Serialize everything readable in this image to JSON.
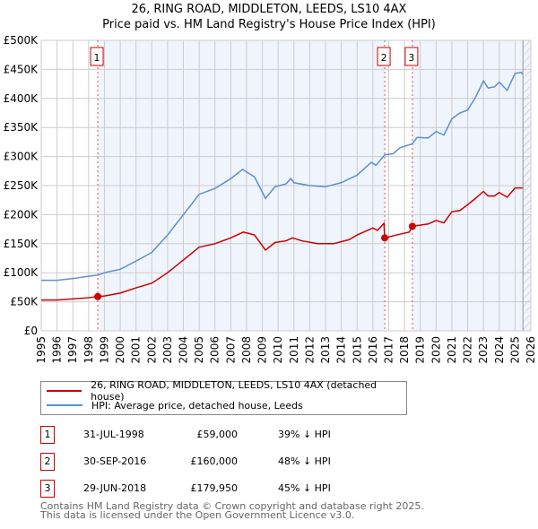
{
  "chart_data": {
    "type": "line",
    "title": "26, RING ROAD, MIDDLETON, LEEDS, LS10 4AX",
    "subtitle": "Price paid vs. HM Land Registry's House Price Index (HPI)",
    "xlim": [
      1995,
      2026
    ],
    "ylim": [
      0,
      500000
    ],
    "y_ticks": [
      {
        "v": 0,
        "label": "£0"
      },
      {
        "v": 50000,
        "label": "£50K"
      },
      {
        "v": 100000,
        "label": "£100K"
      },
      {
        "v": 150000,
        "label": "£150K"
      },
      {
        "v": 200000,
        "label": "£200K"
      },
      {
        "v": 250000,
        "label": "£250K"
      },
      {
        "v": 300000,
        "label": "£300K"
      },
      {
        "v": 350000,
        "label": "£350K"
      },
      {
        "v": 400000,
        "label": "£400K"
      },
      {
        "v": 450000,
        "label": "£450K"
      },
      {
        "v": 500000,
        "label": "£500K"
      }
    ],
    "x_ticks": [
      "1995",
      "1996",
      "1997",
      "1998",
      "1999",
      "2000",
      "2001",
      "2002",
      "2003",
      "2004",
      "2005",
      "2006",
      "2007",
      "2008",
      "2009",
      "2010",
      "2011",
      "2012",
      "2013",
      "2014",
      "2015",
      "2016",
      "2017",
      "2018",
      "2019",
      "2020",
      "2021",
      "2022",
      "2023",
      "2024",
      "2025",
      "2026"
    ],
    "grid": true,
    "series": [
      {
        "name": "26, RING ROAD, MIDDLETON, LEEDS, LS10 4AX (detached house)",
        "color": "#cc0000",
        "x": [
          1995,
          1996,
          1997,
          1998,
          1998.58,
          1999,
          2000,
          2001,
          2002,
          2003,
          2004,
          2005,
          2006,
          2007,
          2007.8,
          2008.5,
          2009.2,
          2009.8,
          2010.5,
          2010.9,
          2011.5,
          2012.5,
          2013.5,
          2014.5,
          2015,
          2016,
          2016.3,
          2016.7,
          2016.75,
          2017.5,
          2018.3,
          2018.5,
          2019.5,
          2020,
          2020.5,
          2021,
          2021.5,
          2022,
          2022.5,
          2023,
          2023.3,
          2023.7,
          2024,
          2024.5,
          2025,
          2025.5
        ],
        "y": [
          53000,
          53000,
          55000,
          57000,
          59000,
          60000,
          65000,
          74000,
          82000,
          100000,
          122000,
          144000,
          150000,
          160000,
          170000,
          165000,
          139000,
          152000,
          155000,
          160000,
          155000,
          150000,
          150000,
          157000,
          165000,
          177000,
          173000,
          185000,
          160000,
          165000,
          170000,
          179950,
          184000,
          190000,
          186000,
          205000,
          207000,
          217000,
          228000,
          240000,
          232000,
          232000,
          238000,
          230000,
          246000,
          246000
        ]
      },
      {
        "name": "HPI: Average price, detached house, Leeds",
        "color": "#5b8fd0",
        "x": [
          1995,
          1996,
          1997,
          1998,
          1998.58,
          1999,
          2000,
          2001,
          2002,
          2003,
          2004,
          2005,
          2006,
          2007,
          2007.75,
          2008.5,
          2009.2,
          2009.8,
          2010.5,
          2010.8,
          2011,
          2012,
          2013,
          2014,
          2015,
          2015.9,
          2016.2,
          2016.75,
          2017.3,
          2017.7,
          2018.5,
          2018.8,
          2019.5,
          2020,
          2020.5,
          2021,
          2021.5,
          2022,
          2022.5,
          2023,
          2023.3,
          2023.7,
          2024,
          2024.5,
          2025,
          2025.4,
          2025.5
        ],
        "y": [
          87000,
          87000,
          90000,
          94000,
          96000,
          100000,
          106000,
          120000,
          135000,
          165000,
          200000,
          235000,
          245000,
          262000,
          278000,
          265000,
          228000,
          248000,
          253000,
          262000,
          255000,
          250000,
          248000,
          255000,
          268000,
          290000,
          285000,
          303000,
          305000,
          315000,
          322000,
          333000,
          332000,
          343000,
          337000,
          365000,
          375000,
          380000,
          402000,
          430000,
          418000,
          420000,
          428000,
          414000,
          443000,
          445000,
          441000
        ]
      }
    ],
    "annotations": [
      {
        "label": "1",
        "x": 1998.58,
        "y": 59000
      },
      {
        "label": "2",
        "x": 2016.75,
        "y": 160000
      },
      {
        "label": "3",
        "x": 2018.5,
        "y": 179950
      }
    ],
    "forecast_hatch_from": 2025.5,
    "legend_placement": "below"
  },
  "sales": [
    {
      "n": "1",
      "date": "31-JUL-1998",
      "price": "£59,000",
      "hpi": "39% ↓ HPI"
    },
    {
      "n": "2",
      "date": "30-SEP-2016",
      "price": "£160,000",
      "hpi": "48% ↓ HPI"
    },
    {
      "n": "3",
      "date": "29-JUN-2018",
      "price": "£179,950",
      "hpi": "45% ↓ HPI"
    }
  ],
  "footer": {
    "line1": "Contains HM Land Registry data © Crown copyright and database right 2025.",
    "line2": "This data is licensed under the Open Government Licence v3.0."
  }
}
